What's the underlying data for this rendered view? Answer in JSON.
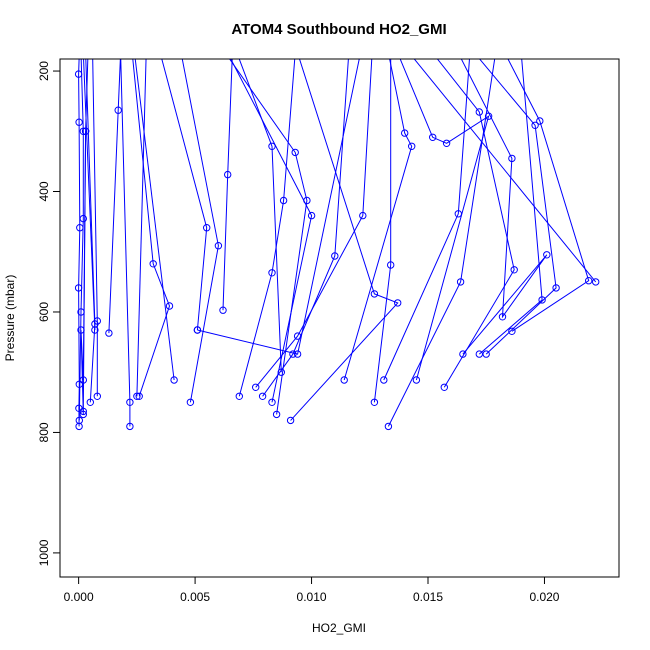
{
  "chart_data": {
    "type": "line",
    "title": "ATOM4 Southbound HO2_GMI",
    "xlabel": "HO2_GMI",
    "ylabel": "Pressure (mbar)",
    "xlim": [
      -0.0008,
      0.0232
    ],
    "ylim": [
      1040,
      180
    ],
    "y_reversed": true,
    "grid": false,
    "x_ticks": [
      0.0,
      0.005,
      0.01,
      0.015,
      0.02
    ],
    "x_tick_labels": [
      "0.000",
      "0.005",
      "0.010",
      "0.015",
      "0.020"
    ],
    "y_ticks": [
      200,
      400,
      600,
      800,
      1000
    ],
    "y_tick_labels": [
      "200",
      "400",
      "600",
      "800",
      "1000"
    ],
    "series_color": "#0000ff",
    "series": [
      {
        "points": [
          [
            2e-05,
            790
          ],
          [
            1e-05,
            760
          ],
          [
            3e-05,
            720
          ],
          [
            0.0,
            560
          ],
          [
            5e-05,
            460
          ],
          [
            2e-05,
            285
          ],
          [
            0.0,
            205
          ],
          [
            3e-05,
            170
          ]
        ]
      },
      {
        "points": [
          [
            3e-05,
            780
          ],
          [
            0.0001,
            600
          ],
          [
            0.0002,
            445
          ],
          [
            0.0002,
            300
          ],
          [
            0.0001,
            170
          ]
        ]
      },
      {
        "points": [
          [
            0.0002,
            765
          ],
          [
            0.0003,
            300
          ],
          [
            0.0004,
            170
          ]
        ]
      },
      {
        "points": [
          [
            0.0005,
            750
          ],
          [
            0.0007,
            620
          ],
          [
            0.0003,
            170
          ]
        ]
      },
      {
        "points": [
          [
            0.0008,
            740
          ],
          [
            0.0008,
            615
          ],
          [
            0.0006,
            170
          ]
        ]
      },
      {
        "points": [
          [
            0.0002,
            770
          ],
          [
            0.0001,
            630
          ],
          [
            0.0002,
            713
          ],
          [
            0.0003,
            300
          ]
        ]
      },
      {
        "points": [
          [
            0.0007,
            630
          ],
          [
            0.0002,
            170
          ]
        ]
      },
      {
        "points": [
          [
            0.0013,
            635
          ],
          [
            0.0017,
            265
          ],
          [
            0.0018,
            170
          ]
        ]
      },
      {
        "points": [
          [
            0.0022,
            790
          ],
          [
            0.0022,
            750
          ],
          [
            0.0018,
            170
          ]
        ]
      },
      {
        "points": [
          [
            0.0025,
            740
          ],
          [
            0.0029,
            170
          ]
        ]
      },
      {
        "points": [
          [
            0.0026,
            740
          ],
          [
            0.0039,
            590
          ],
          [
            0.0032,
            520
          ],
          [
            0.0023,
            170
          ]
        ]
      },
      {
        "points": [
          [
            0.0041,
            713
          ],
          [
            0.0024,
            170
          ]
        ]
      },
      {
        "points": [
          [
            0.0048,
            750
          ],
          [
            0.006,
            490
          ],
          [
            0.0044,
            170
          ]
        ]
      },
      {
        "points": [
          [
            0.0051,
            630
          ],
          [
            0.0055,
            460
          ],
          [
            0.0035,
            170
          ]
        ]
      },
      {
        "points": [
          [
            0.0062,
            597
          ],
          [
            0.0064,
            372
          ],
          [
            0.0066,
            170
          ]
        ]
      },
      {
        "points": [
          [
            0.0069,
            740
          ],
          [
            0.0083,
            535
          ],
          [
            0.0088,
            415
          ],
          [
            0.0093,
            170
          ]
        ]
      },
      {
        "points": [
          [
            0.0076,
            725
          ],
          [
            0.0094,
            640
          ],
          [
            0.0122,
            440
          ],
          [
            0.0126,
            170
          ]
        ]
      },
      {
        "points": [
          [
            0.0079,
            740
          ],
          [
            0.0092,
            670
          ],
          [
            0.011,
            507
          ],
          [
            0.0116,
            170
          ]
        ]
      },
      {
        "points": [
          [
            0.0083,
            750
          ],
          [
            0.01,
            440
          ],
          [
            0.0064,
            170
          ]
        ]
      },
      {
        "points": [
          [
            0.0085,
            770
          ],
          [
            0.0098,
            415
          ],
          [
            0.0093,
            335
          ],
          [
            0.0063,
            170
          ]
        ]
      },
      {
        "points": [
          [
            0.0087,
            700
          ],
          [
            0.0083,
            325
          ],
          [
            0.0068,
            170
          ]
        ]
      },
      {
        "points": [
          [
            0.0091,
            780
          ],
          [
            0.0137,
            585
          ],
          [
            0.0127,
            570
          ],
          [
            0.0094,
            170
          ]
        ]
      },
      {
        "points": [
          [
            0.0051,
            630
          ],
          [
            0.0094,
            670
          ],
          [
            0.0121,
            170
          ]
        ]
      },
      {
        "points": [
          [
            0.0114,
            713
          ],
          [
            0.0143,
            325
          ],
          [
            0.014,
            303
          ],
          [
            0.0133,
            170
          ]
        ]
      },
      {
        "points": [
          [
            0.0127,
            750
          ],
          [
            0.0134,
            522
          ],
          [
            0.0134,
            170
          ]
        ]
      },
      {
        "points": [
          [
            0.0131,
            713
          ],
          [
            0.0163,
            437
          ],
          [
            0.0168,
            170
          ]
        ]
      },
      {
        "points": [
          [
            0.0133,
            790
          ],
          [
            0.0164,
            550
          ],
          [
            0.0179,
            170
          ]
        ]
      },
      {
        "points": [
          [
            0.0145,
            713
          ],
          [
            0.0176,
            275
          ],
          [
            0.0158,
            320
          ],
          [
            0.0152,
            310
          ],
          [
            0.0137,
            170
          ]
        ]
      },
      {
        "points": [
          [
            0.0157,
            725
          ],
          [
            0.0187,
            530
          ],
          [
            0.0172,
            268
          ],
          [
            0.0152,
            170
          ]
        ]
      },
      {
        "points": [
          [
            0.0165,
            670
          ],
          [
            0.0201,
            505
          ],
          [
            0.0182,
            608
          ],
          [
            0.0186,
            345
          ],
          [
            0.0163,
            170
          ]
        ]
      },
      {
        "points": [
          [
            0.0172,
            670
          ],
          [
            0.0199,
            580
          ],
          [
            0.019,
            170
          ]
        ]
      },
      {
        "points": [
          [
            0.0175,
            670
          ],
          [
            0.0205,
            560
          ],
          [
            0.0196,
            290
          ],
          [
            0.017,
            170
          ]
        ]
      },
      {
        "points": [
          [
            0.0186,
            632
          ],
          [
            0.0219,
            548
          ],
          [
            0.0198,
            283
          ],
          [
            0.0183,
            170
          ]
        ]
      },
      {
        "points": [
          [
            0.0222,
            550
          ],
          [
            0.0142,
            170
          ]
        ]
      }
    ]
  }
}
